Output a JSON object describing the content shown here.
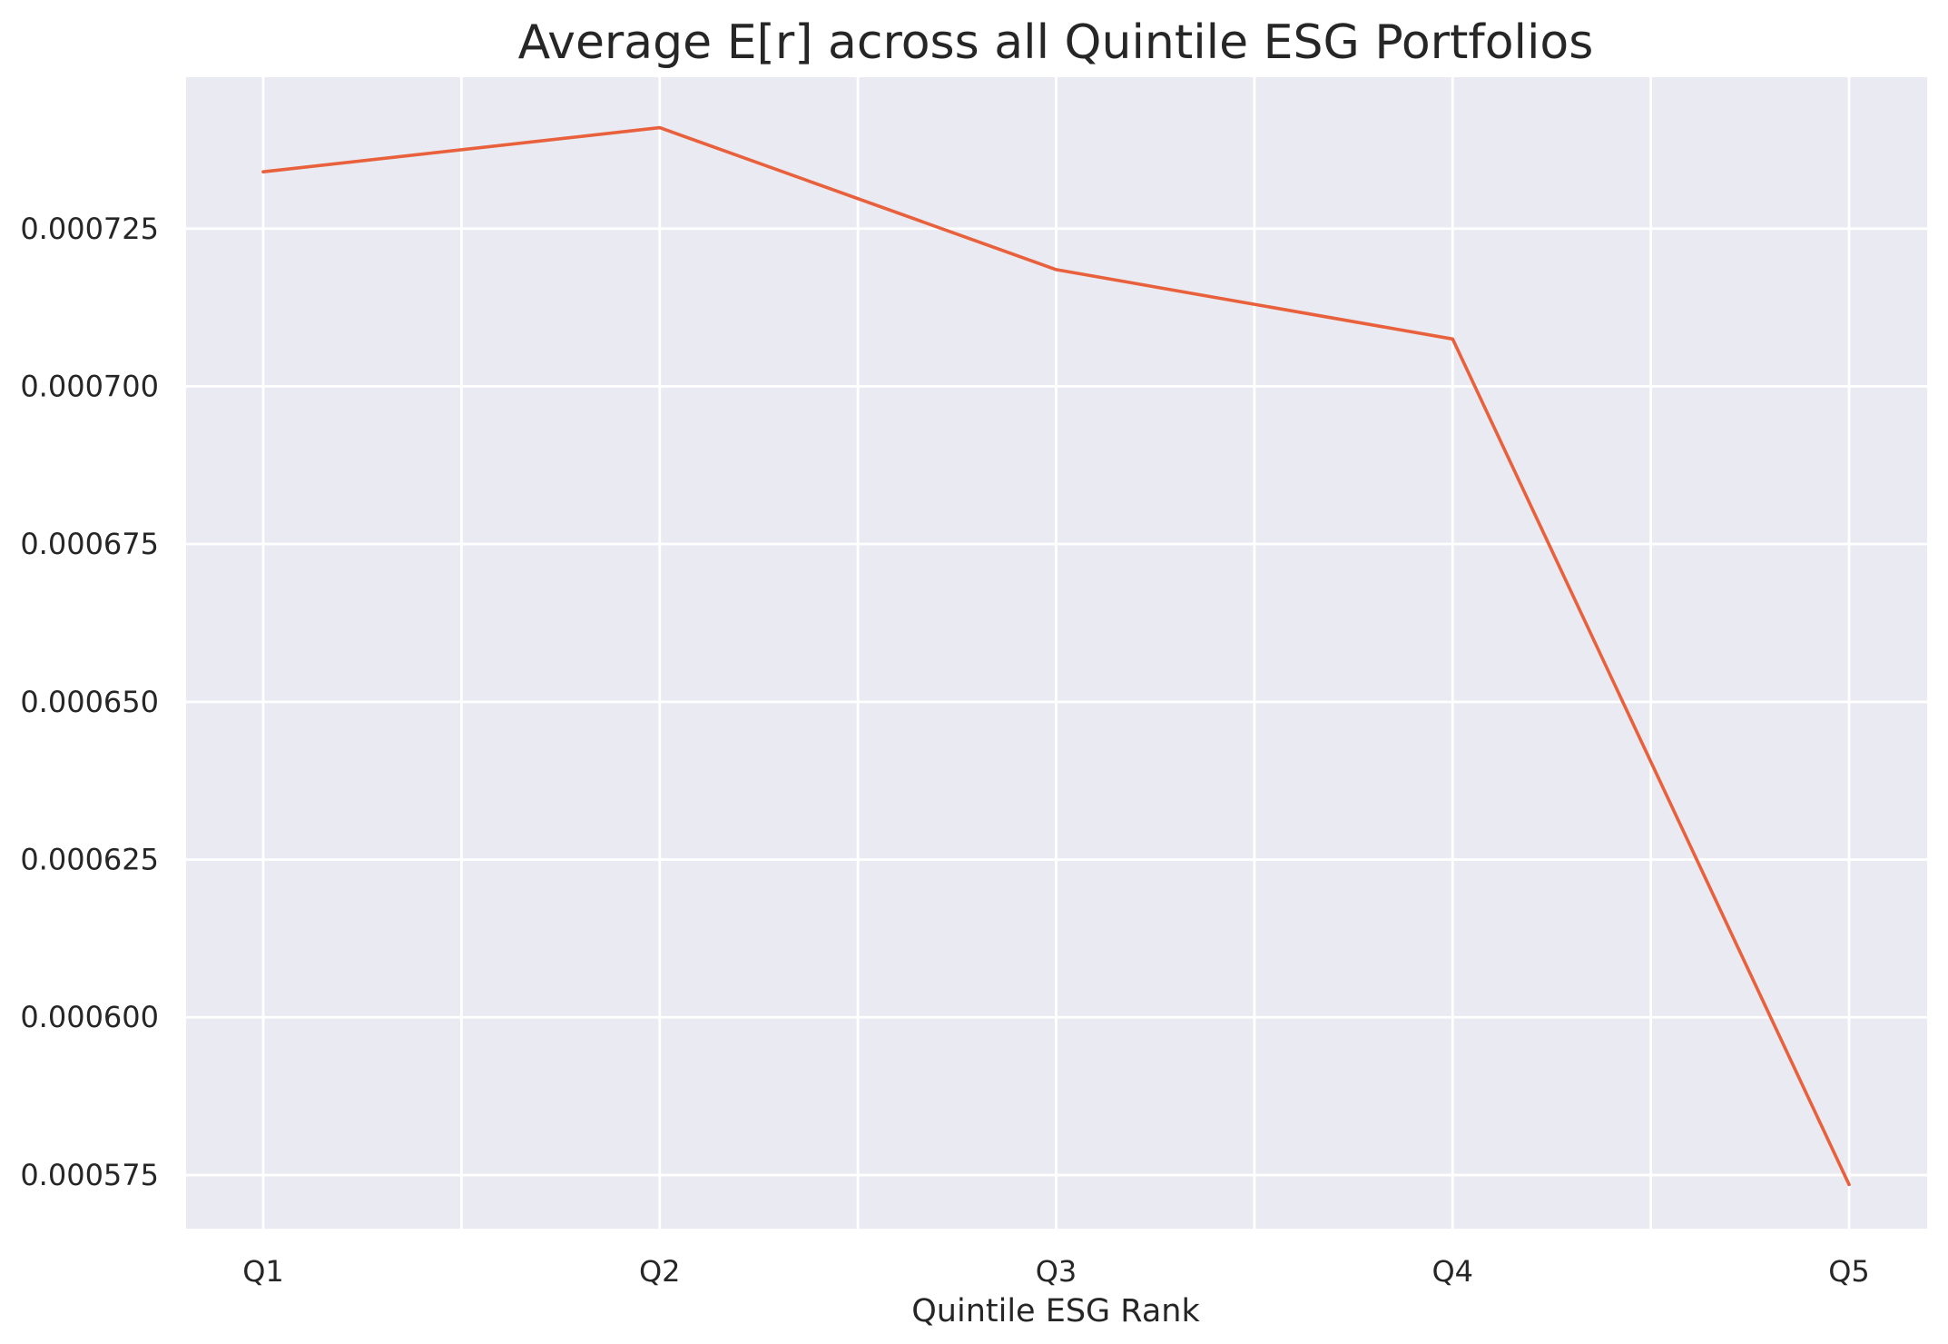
{
  "chart_data": {
    "type": "line",
    "title": "Average E[r] across all Quintile ESG Portfolios",
    "xlabel": "Quintile ESG Rank",
    "ylabel": "",
    "categories": [
      "Q1",
      "Q2",
      "Q3",
      "Q4",
      "Q5"
    ],
    "series": [
      {
        "values": [
          0.000734,
          0.000741,
          0.0007185,
          0.0007075,
          0.0005735
        ],
        "color": "#e8613c"
      }
    ],
    "ylim": [
      0.0005665,
      0.000749
    ],
    "yticks": [
      0.000575,
      0.0006,
      0.000625,
      0.00065,
      0.000675,
      0.0007,
      0.000725
    ],
    "ytick_labels": [
      "0.000575",
      "0.000600",
      "0.000625",
      "0.000650",
      "0.000675",
      "0.000700",
      "0.000725"
    ],
    "x_minor_gridlines": true,
    "grid": true,
    "background": "#eaeaf2"
  }
}
